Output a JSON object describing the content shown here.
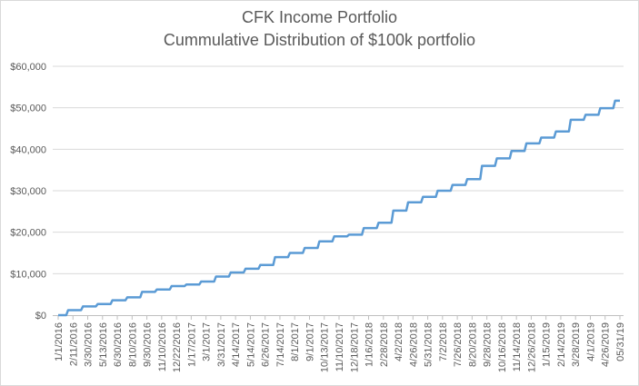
{
  "chart_data": {
    "type": "line",
    "title": "CFK Income Portfolio",
    "subtitle": "Cummulative Distribution of $100k portfolio",
    "xlabel": "",
    "ylabel": "",
    "ylim": [
      0,
      60000
    ],
    "yticks": [
      0,
      10000,
      20000,
      30000,
      40000,
      50000,
      60000
    ],
    "ytick_labels": [
      "$0",
      "$10,000",
      "$20,000",
      "$30,000",
      "$40,000",
      "$50,000",
      "$60,000"
    ],
    "xtick_labels": [
      "1/1/2016",
      "2/11/2016",
      "3/30/2016",
      "5/13/2016",
      "6/30/2016",
      "8/10/2016",
      "9/30/2016",
      "11/10/2016",
      "12/22/2016",
      "1/17/2017",
      "3/1/2017",
      "3/31/2017",
      "4/14/2017",
      "5/14/2017",
      "6/26/2017",
      "7/14/2017",
      "8/1/2017",
      "9/1/2017",
      "10/13/2017",
      "11/10/2017",
      "12/18/2017",
      "1/16/2018",
      "2/28/2018",
      "4/2/2018",
      "4/26/2018",
      "5/31/2018",
      "7/2/2018",
      "7/26/2018",
      "8/20/2018",
      "9/28/2018",
      "10/16/2018",
      "11/14/2018",
      "12/26/2018",
      "1/15/2019",
      "2/14/2019",
      "3/28/2019",
      "4/1/2019",
      "4/26/2019",
      "05/31/19"
    ],
    "grid": true,
    "legend": "none",
    "line_color": "#5b9bd5",
    "series": [
      {
        "x": [
          0,
          1,
          2,
          3,
          4,
          5,
          6,
          7,
          8,
          9,
          10,
          11,
          12,
          13,
          14,
          15,
          16,
          17,
          18,
          19,
          20,
          21,
          22,
          23,
          24,
          25,
          26,
          27,
          28,
          29,
          30,
          31,
          32,
          33,
          34,
          35,
          36,
          37,
          38
        ],
        "values": [
          0,
          1200,
          2100,
          2700,
          3600,
          4300,
          5600,
          6200,
          7000,
          7400,
          8100,
          9300,
          10300,
          11200,
          12100,
          14000,
          15000,
          16200,
          17800,
          19000,
          19400,
          21000,
          22300,
          25200,
          27200,
          28500,
          30000,
          31400,
          32800,
          36000,
          37800,
          39600,
          41400,
          42800,
          44300,
          47100,
          48300,
          49900,
          51700
        ]
      }
    ]
  }
}
